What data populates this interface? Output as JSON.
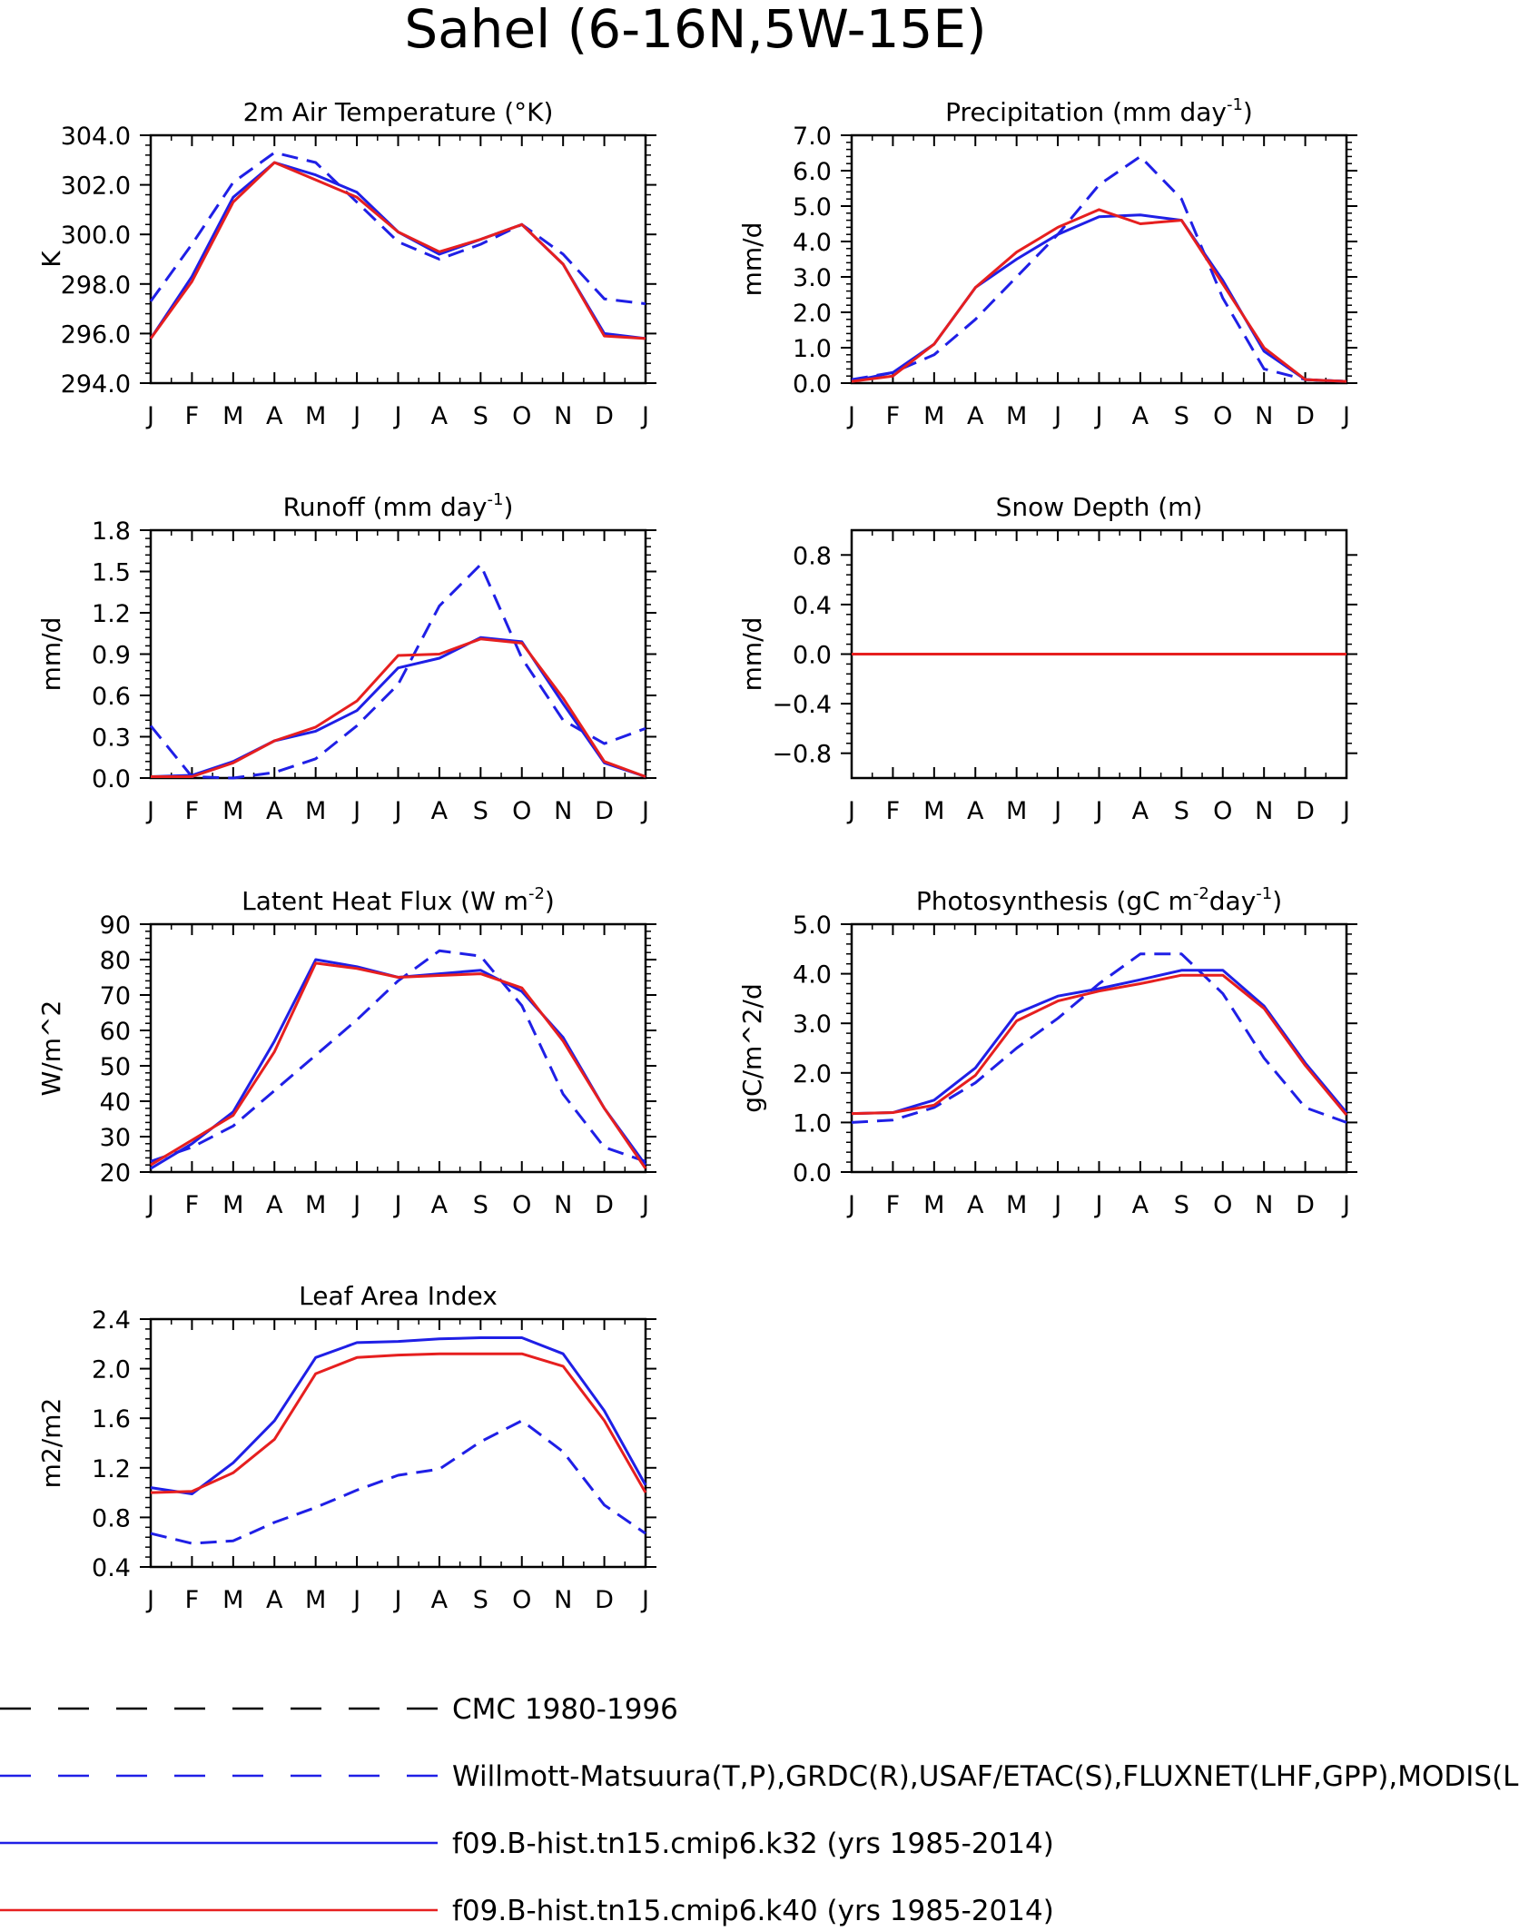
{
  "page_title": "Sahel (6-16N,5W-15E)",
  "months": [
    "J",
    "F",
    "M",
    "A",
    "M",
    "J",
    "J",
    "A",
    "S",
    "O",
    "N",
    "D",
    "J"
  ],
  "colors": {
    "observed": "#1f1fe6",
    "model_k32": "#1f1fe6",
    "model_k40": "#e61f1f",
    "axis": "#000000"
  },
  "legend": [
    {
      "label": "CMC 1980-1996",
      "color": "#000000",
      "style": "dashed"
    },
    {
      "label": "Willmott-Matsuura(T,P),GRDC(R),USAF/ETAC(S),FLUXNET(LHF,GPP),MODIS(L",
      "color": "#1f1fe6",
      "style": "dashed"
    },
    {
      "label": "f09.B-hist.tn15.cmip6.k32 (yrs 1985-2014)",
      "color": "#1f1fe6",
      "style": "solid"
    },
    {
      "label": "f09.B-hist.tn15.cmip6.k40 (yrs 1985-2014)",
      "color": "#e61f1f",
      "style": "solid"
    }
  ],
  "chart_data": [
    {
      "type": "line",
      "title": "2m Air Temperature (°K)",
      "ylabel": "K",
      "ylim": [
        294,
        304
      ],
      "yticks": [
        294,
        296,
        298,
        300,
        302,
        304
      ],
      "ytick_labels": [
        "294.0",
        "296.0",
        "298.0",
        "300.0",
        "302.0",
        "304.0"
      ],
      "series": [
        {
          "style": "dashed",
          "color": "#1f1fe6",
          "values": [
            297.3,
            299.6,
            302.1,
            303.3,
            302.9,
            301.3,
            299.7,
            299.0,
            299.6,
            300.4,
            299.2,
            297.4,
            297.2
          ]
        },
        {
          "style": "solid",
          "color": "#1f1fe6",
          "values": [
            295.8,
            298.3,
            301.5,
            302.9,
            302.4,
            301.7,
            300.1,
            299.2,
            299.8,
            300.4,
            298.8,
            296.0,
            295.8
          ]
        },
        {
          "style": "solid",
          "color": "#e61f1f",
          "values": [
            295.8,
            298.1,
            301.3,
            302.9,
            302.2,
            301.5,
            300.1,
            299.3,
            299.8,
            300.4,
            298.8,
            295.9,
            295.8
          ]
        }
      ]
    },
    {
      "type": "line",
      "title": "Precipitation (mm day",
      "title_sup": "-1",
      "title_end": ")",
      "ylabel": "mm/d",
      "ylim": [
        0,
        7
      ],
      "yticks": [
        0,
        1,
        2,
        3,
        4,
        5,
        6,
        7
      ],
      "ytick_labels": [
        "0.0",
        "1.0",
        "2.0",
        "3.0",
        "4.0",
        "5.0",
        "6.0",
        "7.0"
      ],
      "series": [
        {
          "style": "dashed",
          "color": "#1f1fe6",
          "values": [
            0.1,
            0.3,
            0.8,
            1.8,
            3.0,
            4.2,
            5.6,
            6.4,
            5.2,
            2.4,
            0.4,
            0.1,
            0.05
          ]
        },
        {
          "style": "solid",
          "color": "#1f1fe6",
          "values": [
            0.05,
            0.3,
            1.1,
            2.7,
            3.5,
            4.2,
            4.7,
            4.75,
            4.6,
            2.9,
            0.9,
            0.1,
            0.05
          ]
        },
        {
          "style": "solid",
          "color": "#e61f1f",
          "values": [
            0.05,
            0.2,
            1.1,
            2.7,
            3.7,
            4.4,
            4.9,
            4.5,
            4.6,
            2.8,
            1.0,
            0.1,
            0.05
          ]
        }
      ]
    },
    {
      "type": "line",
      "title": "Runoff (mm day",
      "title_sup": "-1",
      "title_end": ")",
      "ylabel": "mm/d",
      "ylim": [
        0,
        1.8
      ],
      "yticks": [
        0,
        0.3,
        0.6,
        0.9,
        1.2,
        1.5,
        1.8
      ],
      "ytick_labels": [
        "0.0",
        "0.3",
        "0.6",
        "0.9",
        "1.2",
        "1.5",
        "1.8"
      ],
      "series": [
        {
          "style": "dashed",
          "color": "#1f1fe6",
          "values": [
            0.38,
            0.01,
            0.0,
            0.04,
            0.14,
            0.38,
            0.68,
            1.25,
            1.55,
            0.87,
            0.42,
            0.25,
            0.36
          ]
        },
        {
          "style": "solid",
          "color": "#1f1fe6",
          "values": [
            0.01,
            0.02,
            0.12,
            0.27,
            0.34,
            0.49,
            0.8,
            0.87,
            1.02,
            0.99,
            0.54,
            0.11,
            0.01
          ]
        },
        {
          "style": "solid",
          "color": "#e61f1f",
          "values": [
            0.01,
            0.01,
            0.11,
            0.27,
            0.37,
            0.56,
            0.89,
            0.9,
            1.01,
            0.98,
            0.58,
            0.12,
            0.01
          ]
        }
      ]
    },
    {
      "type": "line",
      "title": "Snow Depth (m)",
      "ylabel": "mm/d",
      "ylim": [
        -1,
        1
      ],
      "yticks": [
        -0.8,
        -0.4,
        0,
        0.4,
        0.8
      ],
      "ytick_labels": [
        "−0.8",
        "−0.4",
        "0.0",
        "0.4",
        "0.8"
      ],
      "series": [
        {
          "style": "dashed",
          "color": "#1f1fe6",
          "values": [
            0,
            0,
            0,
            0,
            0,
            0,
            0,
            0,
            0,
            0,
            0,
            0,
            0
          ]
        },
        {
          "style": "solid",
          "color": "#1f1fe6",
          "values": [
            0,
            0,
            0,
            0,
            0,
            0,
            0,
            0,
            0,
            0,
            0,
            0,
            0
          ]
        },
        {
          "style": "solid",
          "color": "#e61f1f",
          "values": [
            0,
            0,
            0,
            0,
            0,
            0,
            0,
            0,
            0,
            0,
            0,
            0,
            0
          ]
        }
      ]
    },
    {
      "type": "line",
      "title": "Latent Heat Flux (W m",
      "title_sup": "-2",
      "title_end": ")",
      "ylabel": "W/m^2",
      "ylim": [
        20,
        90
      ],
      "yticks": [
        20,
        30,
        40,
        50,
        60,
        70,
        80,
        90
      ],
      "ytick_labels": [
        "20",
        "30",
        "40",
        "50",
        "60",
        "70",
        "80",
        "90"
      ],
      "series": [
        {
          "style": "dashed",
          "color": "#1f1fe6",
          "values": [
            23,
            27,
            33,
            43,
            53,
            63,
            74,
            82.5,
            81,
            67,
            42,
            27,
            23
          ]
        },
        {
          "style": "solid",
          "color": "#1f1fe6",
          "values": [
            21,
            28,
            37,
            57,
            80,
            78,
            75,
            76,
            77,
            71,
            58,
            38,
            22
          ]
        },
        {
          "style": "solid",
          "color": "#e61f1f",
          "values": [
            22,
            29,
            36,
            54,
            79,
            77.5,
            75,
            75.5,
            76,
            72,
            57,
            38,
            21
          ]
        }
      ]
    },
    {
      "type": "line",
      "title": "Photosynthesis (gC m",
      "title_sup": "-2",
      "title_mid": "day",
      "title_sup2": "-1",
      "title_end": ")",
      "ylabel": "gC/m^2/d",
      "ylim": [
        0,
        5
      ],
      "yticks": [
        0,
        1,
        2,
        3,
        4,
        5
      ],
      "ytick_labels": [
        "0.0",
        "1.0",
        "2.0",
        "3.0",
        "4.0",
        "5.0"
      ],
      "series": [
        {
          "style": "dashed",
          "color": "#1f1fe6",
          "values": [
            1.0,
            1.05,
            1.3,
            1.8,
            2.5,
            3.1,
            3.8,
            4.4,
            4.4,
            3.6,
            2.3,
            1.3,
            1.0
          ]
        },
        {
          "style": "solid",
          "color": "#1f1fe6",
          "values": [
            1.18,
            1.2,
            1.45,
            2.1,
            3.2,
            3.55,
            3.7,
            3.88,
            4.07,
            4.07,
            3.35,
            2.2,
            1.2
          ]
        },
        {
          "style": "solid",
          "color": "#e61f1f",
          "values": [
            1.18,
            1.2,
            1.35,
            1.95,
            3.05,
            3.45,
            3.65,
            3.8,
            3.97,
            3.97,
            3.3,
            2.15,
            1.15
          ]
        }
      ]
    },
    {
      "type": "line",
      "title": "Leaf Area Index",
      "ylabel": "m2/m2",
      "ylim": [
        0.4,
        2.4
      ],
      "yticks": [
        0.4,
        0.8,
        1.2,
        1.6,
        2.0,
        2.4
      ],
      "ytick_labels": [
        "0.4",
        "0.8",
        "1.2",
        "1.6",
        "2.0",
        "2.4"
      ],
      "series": [
        {
          "style": "dashed",
          "color": "#1f1fe6",
          "values": [
            0.67,
            0.59,
            0.61,
            0.76,
            0.88,
            1.02,
            1.14,
            1.19,
            1.41,
            1.58,
            1.33,
            0.9,
            0.67
          ]
        },
        {
          "style": "solid",
          "color": "#1f1fe6",
          "values": [
            1.04,
            0.99,
            1.24,
            1.58,
            2.09,
            2.21,
            2.22,
            2.24,
            2.25,
            2.25,
            2.12,
            1.66,
            1.06
          ]
        },
        {
          "style": "solid",
          "color": "#e61f1f",
          "values": [
            1.0,
            1.01,
            1.16,
            1.43,
            1.96,
            2.09,
            2.11,
            2.12,
            2.12,
            2.12,
            2.02,
            1.58,
            1.0
          ]
        }
      ]
    }
  ]
}
